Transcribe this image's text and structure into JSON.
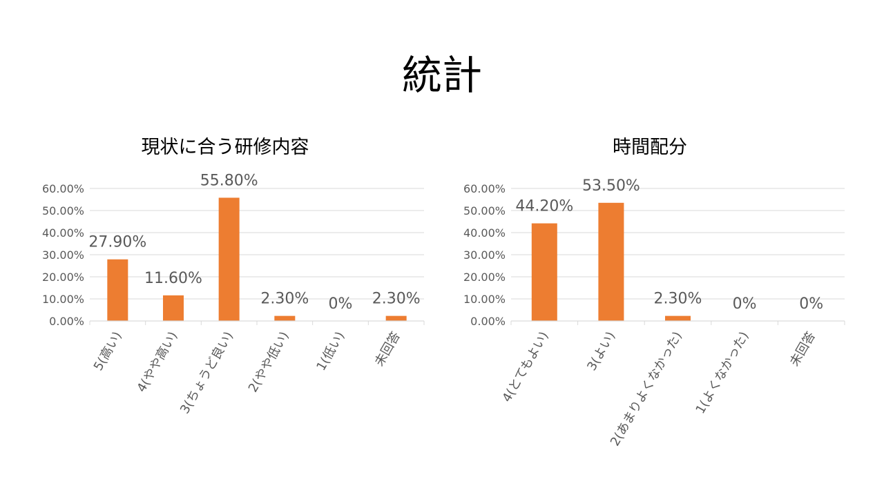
{
  "page": {
    "title": "統計"
  },
  "colors": {
    "bar": "#ED7D31",
    "grid": "#D9D9D9",
    "text": "#595959"
  },
  "chart_data": [
    {
      "type": "bar",
      "title": "現状に合う研修内容",
      "categories": [
        "5(高い)",
        "4(やや高い)",
        "3(ちょうど良い)",
        "2(やや低い)",
        "1(低い)",
        "未回答"
      ],
      "values": [
        27.9,
        11.6,
        55.8,
        2.3,
        0,
        2.3
      ],
      "data_labels": [
        "27.90%",
        "11.60%",
        "55.80%",
        "2.30%",
        "0%",
        "2.30%"
      ],
      "yticks": [
        "0.00%",
        "10.00%",
        "20.00%",
        "30.00%",
        "40.00%",
        "50.00%",
        "60.00%"
      ],
      "ylim": [
        0,
        60
      ],
      "grid": true,
      "legend": "none"
    },
    {
      "type": "bar",
      "title": "時間配分",
      "categories": [
        "4(とてもよい)",
        "3(よい)",
        "2(あまりよくなかった)",
        "1(よくなかった)",
        "未回答"
      ],
      "values": [
        44.2,
        53.5,
        2.3,
        0,
        0
      ],
      "data_labels": [
        "44.20%",
        "53.50%",
        "2.30%",
        "0%",
        "0%"
      ],
      "yticks": [
        "0.00%",
        "10.00%",
        "20.00%",
        "30.00%",
        "40.00%",
        "50.00%",
        "60.00%"
      ],
      "ylim": [
        0,
        60
      ],
      "grid": true,
      "legend": "none"
    }
  ]
}
